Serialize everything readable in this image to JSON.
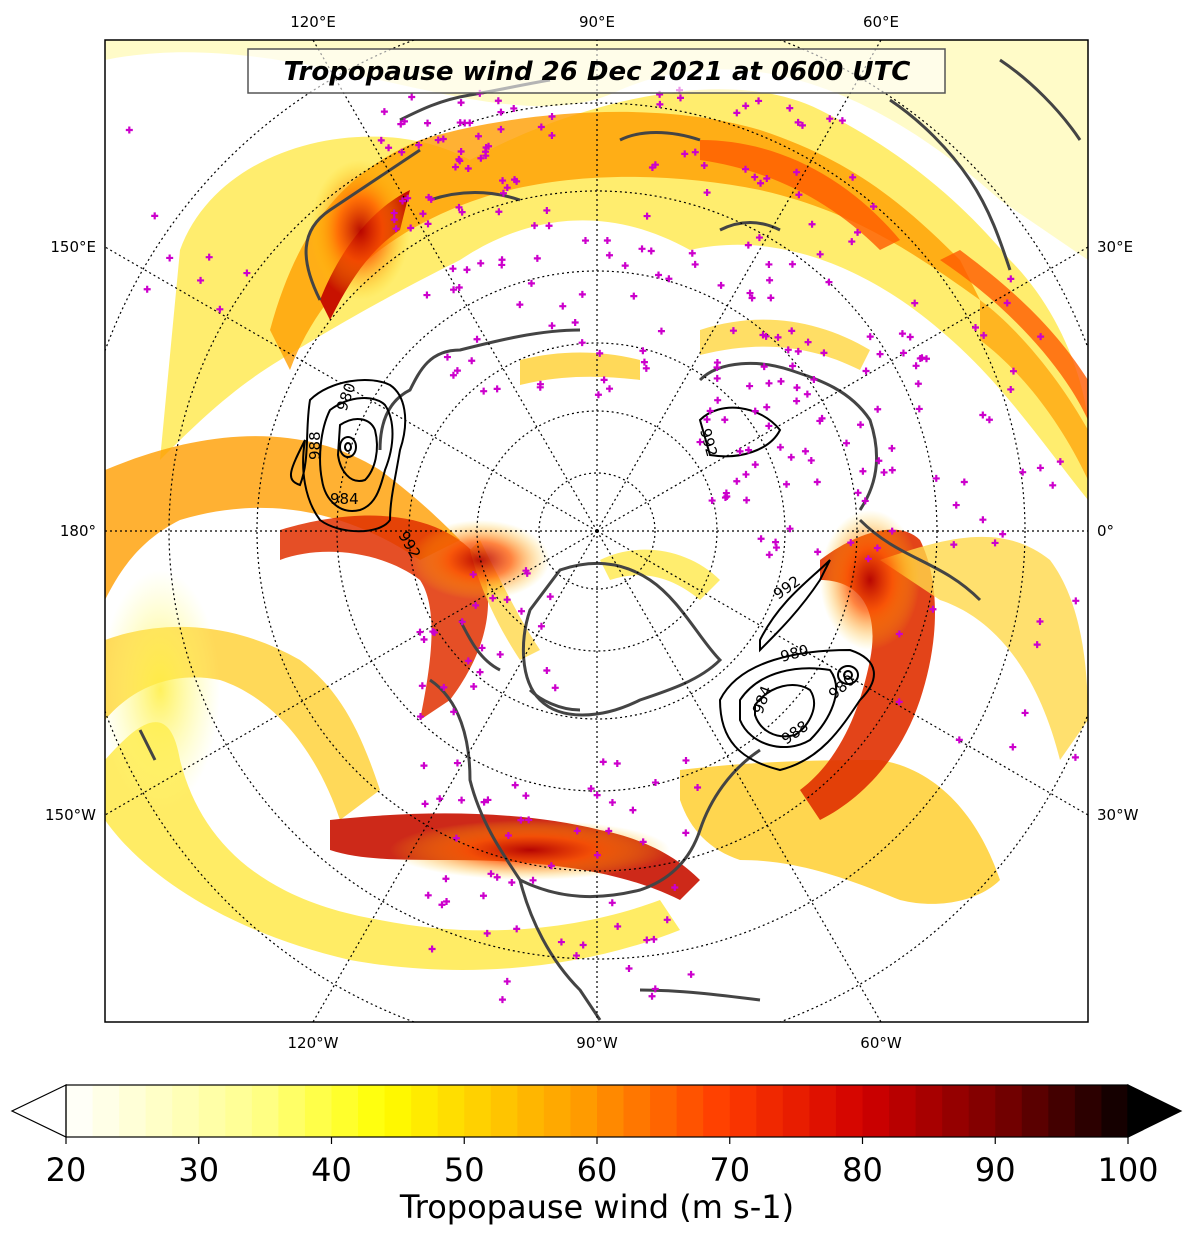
{
  "map": {
    "title": "Tropopause wind 26 Dec 2021 at 0600 UTC",
    "longitude_labels": {
      "top": [
        "120°E",
        "90°E",
        "60°E"
      ],
      "bottom": [
        "120°W",
        "90°W",
        "60°W"
      ],
      "left": [
        "150°E",
        "180°",
        "150°W"
      ],
      "right": [
        "30°E",
        "0°",
        "30°W"
      ]
    },
    "projection": "north polar stereographic",
    "contour_labels": [
      "980",
      "988",
      "984",
      "992",
      "992",
      "992",
      "980",
      "984",
      "988",
      "980"
    ],
    "colors": {
      "station_marker": "#cc00cc",
      "coastline": "#444444",
      "contour": "#000000"
    }
  },
  "colorbar": {
    "ticks": [
      "20",
      "30",
      "40",
      "50",
      "60",
      "70",
      "80",
      "90",
      "100"
    ],
    "label": "Tropopause wind (m s-1)",
    "min": 20,
    "max": 100,
    "extend": "both",
    "colormap": "hot_r"
  }
}
